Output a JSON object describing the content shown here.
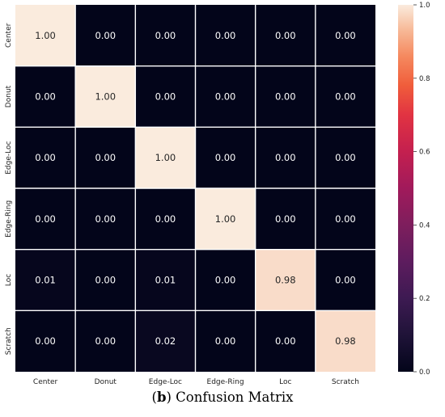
{
  "chart_data": {
    "type": "heatmap",
    "title": "",
    "xlabel": "",
    "ylabel": "",
    "row_labels": [
      "Center",
      "Donut",
      "Edge-Loc",
      "Edge-Ring",
      "Loc",
      "Scratch"
    ],
    "col_labels": [
      "Center",
      "Donut",
      "Edge-Loc",
      "Edge-Ring",
      "Loc",
      "Scratch"
    ],
    "values": [
      [
        1.0,
        0.0,
        0.0,
        0.0,
        0.0,
        0.0
      ],
      [
        0.0,
        1.0,
        0.0,
        0.0,
        0.0,
        0.0
      ],
      [
        0.0,
        0.0,
        1.0,
        0.0,
        0.0,
        0.0
      ],
      [
        0.0,
        0.0,
        0.0,
        1.0,
        0.0,
        0.0
      ],
      [
        0.01,
        0.0,
        0.01,
        0.0,
        0.98,
        0.0
      ],
      [
        0.0,
        0.0,
        0.02,
        0.0,
        0.0,
        0.98
      ]
    ],
    "value_format": "0.00",
    "colorscale": "rocket",
    "vmin": 0.0,
    "vmax": 1.0,
    "colorbar_ticks": [
      "0.0",
      "0.2",
      "0.4",
      "0.6",
      "0.8",
      "1.0"
    ],
    "grid": true,
    "grid_color": "#ffffff"
  },
  "caption": {
    "prefix": "(",
    "letter": "b",
    "suffix": ") Confusion Matrix"
  }
}
